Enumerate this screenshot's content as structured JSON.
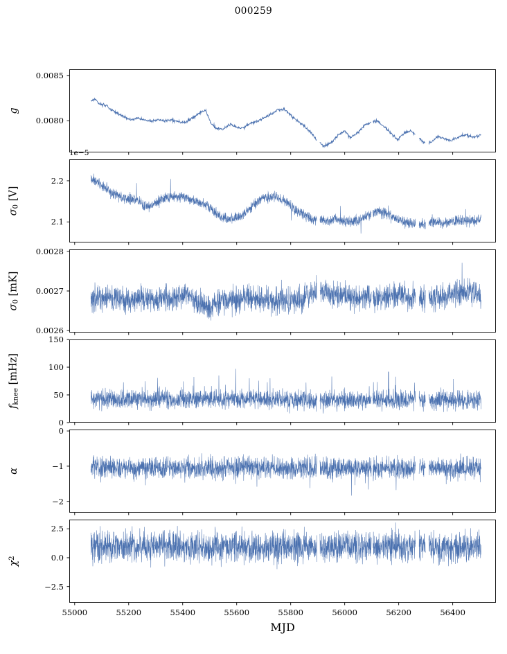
{
  "chart_data": {
    "type": "line",
    "title": "000259",
    "xlabel": "MJD",
    "line_color": "#4c72b0",
    "seed": 259,
    "xlim": [
      54980,
      56560
    ],
    "x_start": 55060,
    "x_end": 56505,
    "x_ticks": [
      55000,
      55200,
      55400,
      55600,
      55800,
      56000,
      56200,
      56400
    ],
    "x_tick_labels": [
      "55000",
      "55200",
      "55400",
      "55600",
      "55800",
      "56000",
      "56200",
      "56400"
    ],
    "gaps": [
      [
        55897,
        55908
      ],
      [
        56099,
        56104
      ],
      [
        56262,
        56275
      ],
      [
        56299,
        56311
      ]
    ],
    "grid": false,
    "legend": "none",
    "panels": [
      {
        "id": "g",
        "ylabel": "g",
        "ylabel_parts": [
          {
            "t": "g",
            "i": true
          }
        ],
        "ylim": [
          0.00765,
          0.00857
        ],
        "yticks": [
          0.008,
          0.0085
        ],
        "ytick_labels": [
          "0.0080",
          "0.0085"
        ],
        "noise": 1.5e-05,
        "dx": 1.2,
        "lw": 0.9,
        "trend": [
          [
            55060,
            0.00822
          ],
          [
            55075,
            0.00824
          ],
          [
            55095,
            0.00818
          ],
          [
            55115,
            0.00817
          ],
          [
            55135,
            0.00812
          ],
          [
            55160,
            0.00808
          ],
          [
            55185,
            0.00804
          ],
          [
            55210,
            0.00801
          ],
          [
            55235,
            0.00803
          ],
          [
            55260,
            0.00801
          ],
          [
            55285,
            0.00799
          ],
          [
            55310,
            0.00801
          ],
          [
            55335,
            0.008
          ],
          [
            55360,
            0.00801
          ],
          [
            55385,
            0.00799
          ],
          [
            55410,
            0.00798
          ],
          [
            55435,
            0.00803
          ],
          [
            55465,
            0.00809
          ],
          [
            55485,
            0.00812
          ],
          [
            55505,
            0.00797
          ],
          [
            55525,
            0.00792
          ],
          [
            55550,
            0.00791
          ],
          [
            55575,
            0.00796
          ],
          [
            55600,
            0.00793
          ],
          [
            55625,
            0.00792
          ],
          [
            55650,
            0.00797
          ],
          [
            55675,
            0.00799
          ],
          [
            55700,
            0.00803
          ],
          [
            55725,
            0.00807
          ],
          [
            55750,
            0.00812
          ],
          [
            55775,
            0.00813
          ],
          [
            55800,
            0.00806
          ],
          [
            55825,
            0.008
          ],
          [
            55850,
            0.00794
          ],
          [
            55875,
            0.00787
          ],
          [
            55900,
            0.00777
          ],
          [
            55925,
            0.00772
          ],
          [
            55950,
            0.00776
          ],
          [
            55975,
            0.00784
          ],
          [
            56000,
            0.00789
          ],
          [
            56020,
            0.00781
          ],
          [
            56045,
            0.00786
          ],
          [
            56070,
            0.00794
          ],
          [
            56095,
            0.00798
          ],
          [
            56120,
            0.008
          ],
          [
            56145,
            0.00794
          ],
          [
            56170,
            0.00787
          ],
          [
            56195,
            0.00779
          ],
          [
            56220,
            0.00786
          ],
          [
            56245,
            0.00789
          ],
          [
            56270,
            0.00782
          ],
          [
            56295,
            0.00776
          ],
          [
            56320,
            0.00776
          ],
          [
            56345,
            0.00783
          ],
          [
            56370,
            0.0078
          ],
          [
            56395,
            0.00778
          ],
          [
            56420,
            0.00782
          ],
          [
            56445,
            0.00785
          ],
          [
            56470,
            0.00782
          ],
          [
            56505,
            0.00784
          ]
        ]
      },
      {
        "id": "sigma0_v",
        "ylabel": "σ0 [V]",
        "ylabel_parts": [
          {
            "t": "σ",
            "i": true
          },
          {
            "t": "0",
            "sub": true
          },
          {
            "t": " [V]"
          }
        ],
        "offset_text": "1e−5",
        "ylim": [
          2.05,
          2.252
        ],
        "yticks": [
          2.1,
          2.2
        ],
        "ytick_labels": [
          "2.1",
          "2.2"
        ],
        "noise": 0.012,
        "dx": 0.6,
        "lw": 0.55,
        "spike": {
          "prob": 0.004,
          "amp": 0.04,
          "dir": "both"
        },
        "trend": [
          [
            55060,
            2.205
          ],
          [
            55080,
            2.2
          ],
          [
            55110,
            2.185
          ],
          [
            55140,
            2.17
          ],
          [
            55170,
            2.16
          ],
          [
            55200,
            2.155
          ],
          [
            55230,
            2.155
          ],
          [
            55255,
            2.14
          ],
          [
            55280,
            2.135
          ],
          [
            55310,
            2.15
          ],
          [
            55340,
            2.16
          ],
          [
            55370,
            2.16
          ],
          [
            55400,
            2.162
          ],
          [
            55430,
            2.155
          ],
          [
            55460,
            2.148
          ],
          [
            55490,
            2.14
          ],
          [
            55520,
            2.122
          ],
          [
            55550,
            2.108
          ],
          [
            55580,
            2.106
          ],
          [
            55610,
            2.112
          ],
          [
            55640,
            2.128
          ],
          [
            55670,
            2.145
          ],
          [
            55700,
            2.157
          ],
          [
            55730,
            2.162
          ],
          [
            55760,
            2.158
          ],
          [
            55790,
            2.146
          ],
          [
            55820,
            2.128
          ],
          [
            55850,
            2.118
          ],
          [
            55880,
            2.105
          ],
          [
            55910,
            2.103
          ],
          [
            55940,
            2.101
          ],
          [
            55970,
            2.106
          ],
          [
            56000,
            2.102
          ],
          [
            56030,
            2.1
          ],
          [
            56060,
            2.108
          ],
          [
            56090,
            2.118
          ],
          [
            56120,
            2.126
          ],
          [
            56150,
            2.122
          ],
          [
            56180,
            2.112
          ],
          [
            56210,
            2.102
          ],
          [
            56240,
            2.097
          ],
          [
            56270,
            2.092
          ],
          [
            56300,
            2.096
          ],
          [
            56330,
            2.1
          ],
          [
            56360,
            2.096
          ],
          [
            56390,
            2.1
          ],
          [
            56420,
            2.104
          ],
          [
            56450,
            2.1
          ],
          [
            56480,
            2.103
          ],
          [
            56505,
            2.108
          ]
        ]
      },
      {
        "id": "sigma0_mk",
        "ylabel": "σ0 [mK]",
        "ylabel_parts": [
          {
            "t": "σ",
            "i": true
          },
          {
            "t": "0",
            "sub": true
          },
          {
            "t": " [mK]"
          }
        ],
        "ylim": [
          0.002595,
          0.002805
        ],
        "yticks": [
          0.0026,
          0.0027,
          0.0028
        ],
        "ytick_labels": [
          "0.0026",
          "0.0027",
          "0.0028"
        ],
        "noise": 3.2e-05,
        "dx": 0.6,
        "lw": 0.55,
        "spike": {
          "prob": 0.004,
          "amp": 5e-05,
          "dir": "up"
        },
        "trend": [
          [
            55060,
            0.00268
          ],
          [
            55120,
            0.002683
          ],
          [
            55180,
            0.002678
          ],
          [
            55240,
            0.002682
          ],
          [
            55300,
            0.002678
          ],
          [
            55360,
            0.002682
          ],
          [
            55410,
            0.002695
          ],
          [
            55450,
            0.002672
          ],
          [
            55490,
            0.00266
          ],
          [
            55540,
            0.002674
          ],
          [
            55600,
            0.002678
          ],
          [
            55660,
            0.00268
          ],
          [
            55720,
            0.002676
          ],
          [
            55780,
            0.002678
          ],
          [
            55840,
            0.00268
          ],
          [
            55890,
            0.0027
          ],
          [
            55920,
            0.002705
          ],
          [
            55960,
            0.002688
          ],
          [
            56000,
            0.002698
          ],
          [
            56040,
            0.00268
          ],
          [
            56080,
            0.002688
          ],
          [
            56120,
            0.002678
          ],
          [
            56160,
            0.002682
          ],
          [
            56200,
            0.002692
          ],
          [
            56240,
            0.002682
          ],
          [
            56280,
            0.00268
          ],
          [
            56330,
            0.002682
          ],
          [
            56380,
            0.002688
          ],
          [
            56420,
            0.002696
          ],
          [
            56460,
            0.0027
          ],
          [
            56505,
            0.002686
          ]
        ]
      },
      {
        "id": "f_knee",
        "ylabel": "f_knee [mHz]",
        "ylabel_parts": [
          {
            "t": "f",
            "i": true
          },
          {
            "t": "knee",
            "sub": true
          },
          {
            "t": " [mHz]"
          }
        ],
        "ylim": [
          0,
          150
        ],
        "yticks": [
          0,
          50,
          100,
          150
        ],
        "ytick_labels": [
          "0",
          "50",
          "100",
          "150"
        ],
        "noise": 17,
        "dx": 0.6,
        "lw": 0.55,
        "spike": {
          "prob": 0.012,
          "amp": 45,
          "dir": "up"
        },
        "trend": [
          [
            55060,
            42
          ],
          [
            55500,
            43
          ],
          [
            55900,
            40
          ],
          [
            56200,
            41
          ],
          [
            56505,
            40
          ]
        ]
      },
      {
        "id": "alpha",
        "ylabel": "α",
        "ylabel_parts": [
          {
            "t": "α",
            "i": true
          }
        ],
        "ylim": [
          -2.32,
          0.04
        ],
        "yticks": [
          0,
          -1,
          -2
        ],
        "ytick_labels": [
          "0",
          "−1",
          "−2"
        ],
        "noise": 0.3,
        "dx": 0.6,
        "lw": 0.55,
        "spike": {
          "prob": 0.015,
          "amp": 0.6,
          "dir": "down"
        },
        "trend": [
          [
            55060,
            -1.04
          ],
          [
            55800,
            -1.05
          ],
          [
            56505,
            -1.05
          ]
        ]
      },
      {
        "id": "chi2",
        "ylabel": "χ2",
        "ylabel_parts": [
          {
            "t": "χ",
            "i": true
          },
          {
            "t": "2",
            "sup": true
          }
        ],
        "ylim": [
          -3.9,
          3.3
        ],
        "yticks": [
          -2.5,
          0.0,
          2.5
        ],
        "ytick_labels": [
          "−2.5",
          "0.0",
          "2.5"
        ],
        "noise": 1.3,
        "dx": 0.6,
        "lw": 0.55,
        "spike": {
          "prob": 0.02,
          "amp": 1.4,
          "dir": "both"
        },
        "trend": [
          [
            55060,
            0.95
          ],
          [
            56505,
            0.95
          ]
        ]
      }
    ]
  }
}
